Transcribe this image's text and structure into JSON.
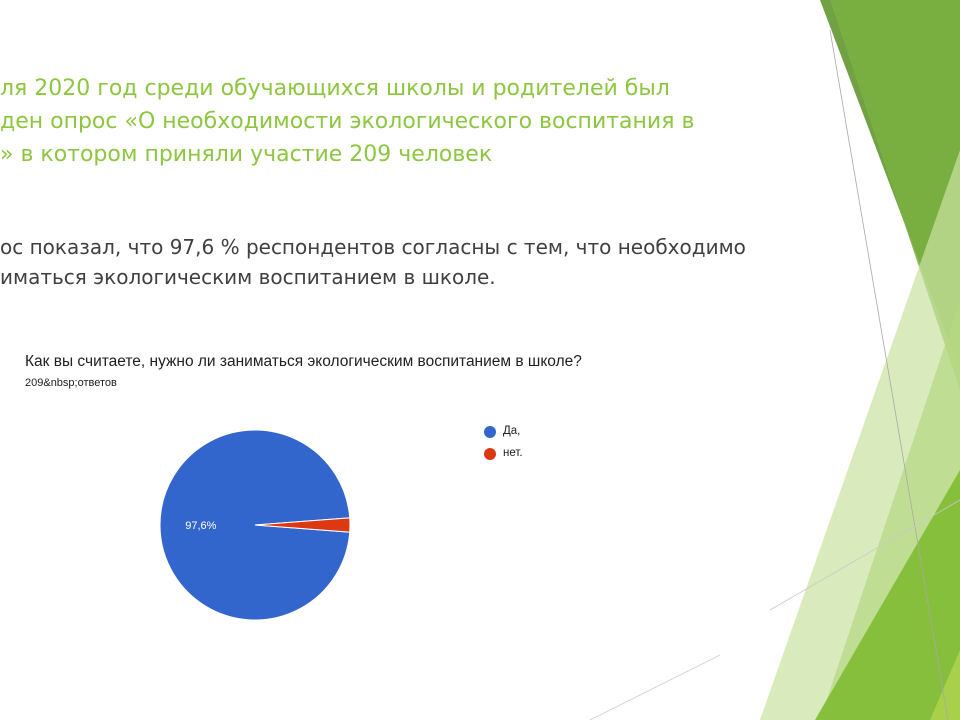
{
  "slide": {
    "heading_lines": [
      "ля 2020 год среди обучающихся школы и родителей был",
      "ден опрос «О необходимости экологического воспитания в",
      "» в котором приняли участие 209 человек"
    ],
    "result_lines": [
      "ос показал, что 97,6 % респондентов согласны с тем, что необходимо",
      "иматься экологическим воспитанием в школе."
    ],
    "colors": {
      "heading": "#8dc63f",
      "body_text": "#404040"
    }
  },
  "form": {
    "question": "Как вы считаете, нужно ли заниматься экологическим воспитанием в школе?",
    "response_count": "209&nbsp;ответов"
  },
  "chart_data": {
    "type": "pie",
    "categories": [
      "Да,",
      "нет."
    ],
    "values": [
      97.6,
      2.4
    ],
    "colors": [
      "#3366cc",
      "#dc3912"
    ],
    "slice_labels": [
      "97,6%",
      ""
    ],
    "legend_position": "right"
  }
}
